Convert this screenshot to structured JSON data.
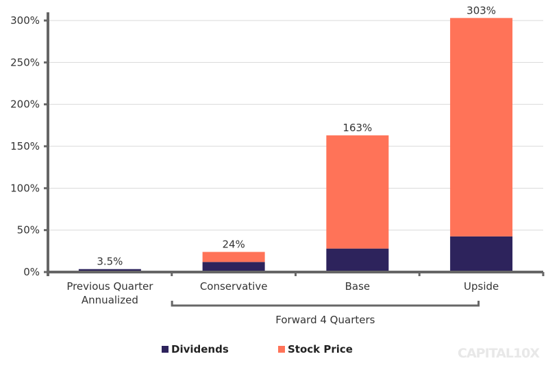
{
  "chart_data": {
    "type": "bar",
    "stacked": true,
    "title": "",
    "xlabel": "",
    "ylabel": "",
    "ylim": [
      0,
      300
    ],
    "yticks": [
      "0%",
      "50%",
      "100%",
      "150%",
      "200%",
      "250%",
      "300%"
    ],
    "ytick_values": [
      0,
      50,
      100,
      150,
      200,
      250,
      300
    ],
    "categories": [
      "Previous Quarter\nAnnualized",
      "Conservative",
      "Base",
      "Upside"
    ],
    "category_lines": [
      [
        "Previous Quarter",
        "Annualized"
      ],
      [
        "Conservative"
      ],
      [
        "Base"
      ],
      [
        "Upside"
      ]
    ],
    "series": [
      {
        "name": "Dividends",
        "color": "#2d235c",
        "values": [
          3.5,
          12,
          28,
          42.5
        ]
      },
      {
        "name": "Stock Price",
        "color": "#ff7358",
        "values": [
          0,
          12,
          135,
          260.5
        ]
      }
    ],
    "totals_labels": [
      "3.5%",
      "24%",
      "163%",
      "303%"
    ],
    "totals": [
      3.5,
      24,
      163,
      303
    ],
    "group_annotation": "Forward 4 Quarters",
    "grid": true,
    "legend": "bottom"
  },
  "watermark": "CAPITAL10X"
}
